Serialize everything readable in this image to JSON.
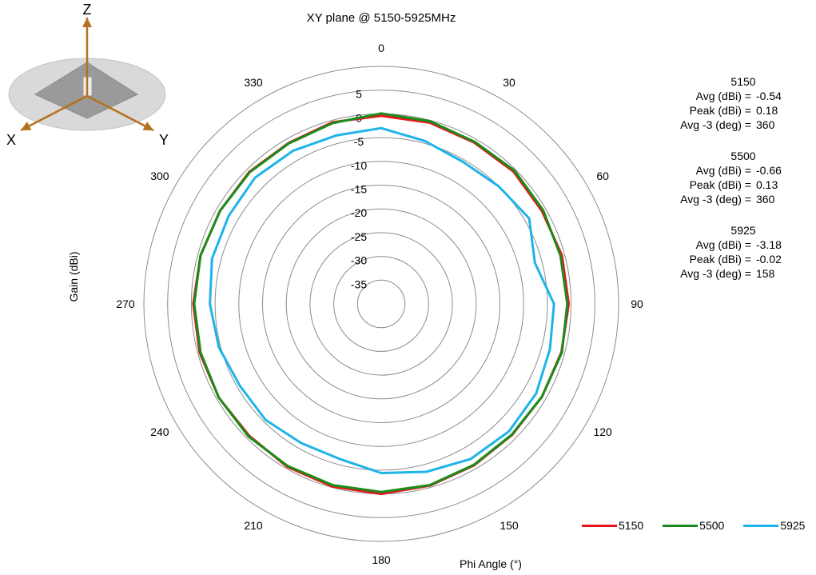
{
  "chart_data": {
    "type": "polar-line",
    "title": "XY plane @ 5150-5925MHz",
    "radial_label": "Gain  (dBi)",
    "angular_label": "Phi  Angle (°)",
    "rlim": [
      -40,
      10
    ],
    "radial_ticks": [
      5,
      0,
      -5,
      -10,
      -15,
      -20,
      -25,
      -30,
      -35
    ],
    "radial_tick_labels": [
      "5",
      "0",
      "-5",
      "-10",
      "-15",
      "-20",
      "-25",
      "-30",
      "-35"
    ],
    "angular_ticks": [
      0,
      30,
      60,
      90,
      120,
      150,
      180,
      210,
      240,
      270,
      300,
      330
    ],
    "angular_tick_labels": [
      "0",
      "30",
      "60",
      "90",
      "120",
      "150",
      "180",
      "210",
      "240",
      "270",
      "300",
      "330"
    ],
    "angles": [
      0,
      15,
      30,
      45,
      60,
      75,
      90,
      105,
      120,
      135,
      150,
      165,
      180,
      195,
      210,
      225,
      240,
      255,
      270,
      285,
      300,
      315,
      330,
      345
    ],
    "series": [
      {
        "name": "5150",
        "color": "#e8161b",
        "values": [
          -0.4,
          -0.5,
          -0.8,
          -0.6,
          -0.9,
          -0.6,
          -0.5,
          -0.7,
          -0.9,
          -1.0,
          -0.8,
          -0.4,
          0.0,
          -0.2,
          -0.4,
          -0.7,
          -0.5,
          -0.4,
          -0.4,
          -0.6,
          -0.8,
          -0.7,
          -0.9,
          -0.4
        ]
      },
      {
        "name": "5500",
        "color": "#1b8c1b",
        "values": [
          0.1,
          -0.2,
          -0.6,
          -0.3,
          -0.6,
          -0.9,
          -0.8,
          -0.6,
          -0.9,
          -1.1,
          -0.9,
          -0.5,
          -0.4,
          -0.5,
          -0.6,
          -0.5,
          -0.5,
          -0.6,
          -0.6,
          -0.6,
          -0.8,
          -0.8,
          -1.0,
          -0.6
        ]
      },
      {
        "name": "5925",
        "color": "#1eb4e8",
        "values": [
          -3.0,
          -4.5,
          -5.5,
          -5.0,
          -4.0,
          -6.5,
          -3.6,
          -3.2,
          -2.3,
          -2.0,
          -2.3,
          -3.4,
          -4.4,
          -6.2,
          -6.2,
          -5.5,
          -5.6,
          -4.6,
          -3.9,
          -3.1,
          -2.9,
          -2.4,
          -2.8,
          -3.3
        ]
      }
    ],
    "legend_position": "bottom-right",
    "stats": [
      {
        "freq": "5150",
        "avg_label": "Avg (dBi) =",
        "avg": "-0.54",
        "peak_label": "Peak (dBi) =",
        "peak": "0.18",
        "bw_label": "Avg -3 (deg) =",
        "bw": "360"
      },
      {
        "freq": "5500",
        "avg_label": "Avg (dBi) =",
        "avg": "-0.66",
        "peak_label": "Peak (dBi) =",
        "peak": "0.13",
        "bw_label": "Avg -3 (deg) =",
        "bw": "360"
      },
      {
        "freq": "5925",
        "avg_label": "Avg (dBi) =",
        "avg": "-3.18",
        "peak_label": "Peak (dBi) =",
        "peak": "-0.02",
        "bw_label": "Avg -3 (deg) =",
        "bw": "158"
      }
    ]
  },
  "axes_icon": {
    "z_label": "Z",
    "x_label": "X",
    "y_label": "Y",
    "arrow_color": "#b5711e"
  }
}
